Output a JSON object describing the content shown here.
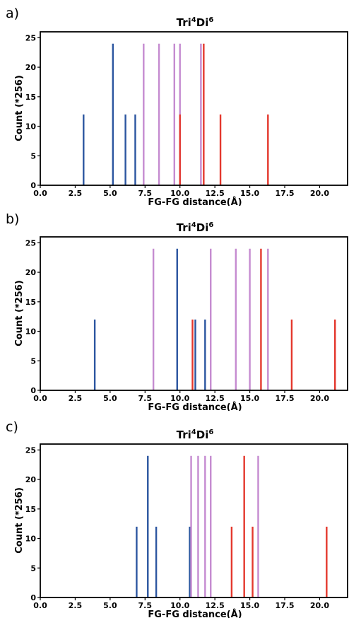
{
  "colors": {
    "blue": "#2c56a0",
    "violet": "#c58bd0",
    "red": "#e4382d",
    "axis": "#000000"
  },
  "chart_data": [
    {
      "type": "bar",
      "panel_label": "a)",
      "title": {
        "main": "Tri",
        "sup1": "4",
        "mid": "Di",
        "sup2": "6"
      },
      "xlabel": "FG-FG distance(Å)",
      "ylabel": "Count  (*256)",
      "xlim": [
        0,
        22
      ],
      "ylim": [
        0,
        26
      ],
      "xticks": [
        "0.0",
        "2.5",
        "5.0",
        "7.5",
        "10.0",
        "12.5",
        "15.0",
        "17.5",
        "20.0"
      ],
      "yticks": [
        "0",
        "5",
        "10",
        "15",
        "20",
        "25"
      ],
      "series": [
        {
          "color": "blue",
          "x": [
            3.1,
            5.2,
            6.1,
            6.8
          ],
          "y": [
            12,
            24,
            12,
            12
          ]
        },
        {
          "color": "violet",
          "x": [
            7.4,
            8.5,
            9.6,
            10.0,
            11.5
          ],
          "y": [
            24,
            24,
            24,
            24,
            24
          ]
        },
        {
          "color": "red",
          "x": [
            10.0,
            11.7,
            12.9,
            16.3
          ],
          "y": [
            12,
            24,
            12,
            12
          ]
        }
      ]
    },
    {
      "type": "bar",
      "panel_label": "b)",
      "title": {
        "main": "Tri",
        "sup1": "4",
        "mid": "Di",
        "sup2": "6"
      },
      "xlabel": "FG-FG distance(Å)",
      "ylabel": "Count  (*256)",
      "xlim": [
        0,
        22
      ],
      "ylim": [
        0,
        26
      ],
      "xticks": [
        "0.0",
        "2.5",
        "5.0",
        "7.5",
        "10.0",
        "12.5",
        "15.0",
        "17.5",
        "20.0"
      ],
      "yticks": [
        "0",
        "5",
        "10",
        "15",
        "20",
        "25"
      ],
      "series": [
        {
          "color": "blue",
          "x": [
            3.9,
            9.8,
            11.1,
            11.8
          ],
          "y": [
            12,
            24,
            12,
            12
          ]
        },
        {
          "color": "violet",
          "x": [
            8.1,
            12.2,
            14.0,
            15.0,
            16.3
          ],
          "y": [
            24,
            24,
            24,
            24,
            24
          ]
        },
        {
          "color": "red",
          "x": [
            10.9,
            15.8,
            18.0,
            21.1
          ],
          "y": [
            12,
            24,
            12,
            12
          ]
        }
      ]
    },
    {
      "type": "bar",
      "panel_label": "c)",
      "title": {
        "main": "Tri",
        "sup1": "4",
        "mid": "Di",
        "sup2": "6"
      },
      "xlabel": "FG-FG distance(Å)",
      "ylabel": "Count  (*256)",
      "xlim": [
        0,
        22
      ],
      "ylim": [
        0,
        26
      ],
      "xticks": [
        "0.0",
        "2.5",
        "5.0",
        "7.5",
        "10.0",
        "12.5",
        "15.0",
        "17.5",
        "20.0"
      ],
      "yticks": [
        "0",
        "5",
        "10",
        "15",
        "20",
        "25"
      ],
      "series": [
        {
          "color": "blue",
          "x": [
            6.9,
            7.7,
            8.3,
            10.7
          ],
          "y": [
            12,
            24,
            12,
            12
          ]
        },
        {
          "color": "violet",
          "x": [
            10.8,
            11.3,
            11.8,
            12.2,
            15.6
          ],
          "y": [
            24,
            24,
            24,
            24,
            24
          ]
        },
        {
          "color": "red",
          "x": [
            13.7,
            14.6,
            15.2,
            20.5
          ],
          "y": [
            12,
            24,
            12,
            12
          ]
        }
      ]
    }
  ]
}
